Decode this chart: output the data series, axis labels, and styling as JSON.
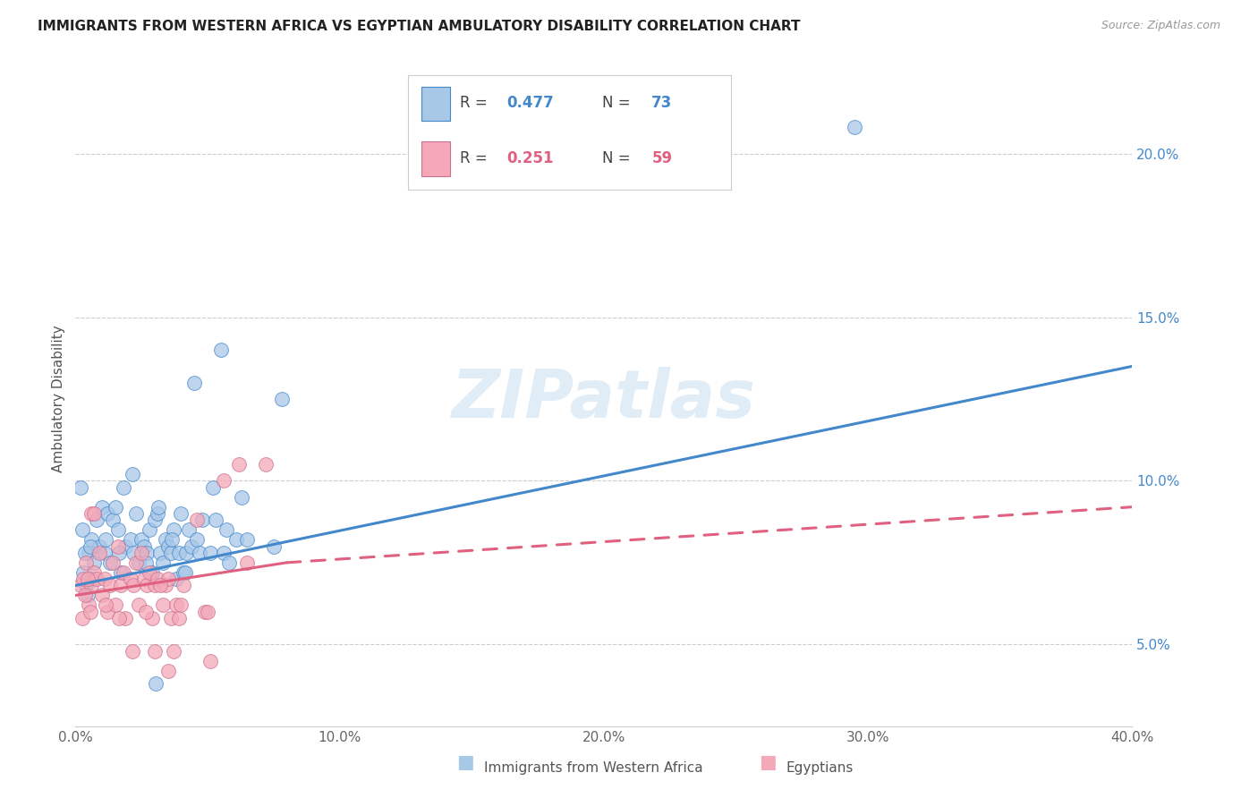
{
  "title": "IMMIGRANTS FROM WESTERN AFRICA VS EGYPTIAN AMBULATORY DISABILITY CORRELATION CHART",
  "source": "Source: ZipAtlas.com",
  "ylabel": "Ambulatory Disability",
  "right_yticks": [
    "5.0%",
    "10.0%",
    "15.0%",
    "20.0%"
  ],
  "right_ytick_vals": [
    5.0,
    10.0,
    15.0,
    20.0
  ],
  "blue_color": "#a8c8e8",
  "pink_color": "#f4a8b8",
  "blue_line_color": "#4488cc",
  "pink_line_color": "#e06080",
  "pink_line_color2": "#cc7090",
  "watermark": "ZIPatlas",
  "blue_scatter": [
    [
      0.3,
      7.2
    ],
    [
      0.4,
      6.8
    ],
    [
      0.5,
      7.8
    ],
    [
      0.6,
      8.2
    ],
    [
      0.6,
      7.0
    ],
    [
      0.7,
      7.5
    ],
    [
      0.8,
      8.8
    ],
    [
      0.9,
      8.0
    ],
    [
      1.0,
      9.2
    ],
    [
      1.1,
      7.8
    ],
    [
      1.2,
      9.0
    ],
    [
      1.3,
      7.5
    ],
    [
      1.4,
      8.8
    ],
    [
      1.5,
      9.2
    ],
    [
      1.6,
      8.5
    ],
    [
      1.7,
      7.2
    ],
    [
      1.8,
      9.8
    ],
    [
      1.9,
      8.0
    ],
    [
      2.1,
      8.2
    ],
    [
      2.2,
      7.8
    ],
    [
      2.3,
      9.0
    ],
    [
      2.4,
      7.5
    ],
    [
      2.5,
      8.2
    ],
    [
      2.6,
      8.0
    ],
    [
      2.7,
      7.8
    ],
    [
      2.8,
      8.5
    ],
    [
      2.9,
      7.2
    ],
    [
      3.0,
      8.8
    ],
    [
      3.1,
      9.0
    ],
    [
      3.2,
      7.8
    ],
    [
      3.3,
      7.5
    ],
    [
      3.4,
      8.2
    ],
    [
      3.5,
      8.0
    ],
    [
      3.6,
      7.8
    ],
    [
      3.7,
      8.5
    ],
    [
      3.8,
      7.0
    ],
    [
      3.9,
      7.8
    ],
    [
      4.0,
      9.0
    ],
    [
      4.1,
      7.2
    ],
    [
      4.2,
      7.8
    ],
    [
      4.3,
      8.5
    ],
    [
      4.4,
      8.0
    ],
    [
      4.6,
      8.2
    ],
    [
      4.7,
      7.8
    ],
    [
      4.8,
      8.8
    ],
    [
      5.1,
      7.8
    ],
    [
      5.2,
      9.8
    ],
    [
      5.3,
      8.8
    ],
    [
      5.6,
      7.8
    ],
    [
      5.7,
      8.5
    ],
    [
      5.8,
      7.5
    ],
    [
      6.1,
      8.2
    ],
    [
      6.3,
      9.5
    ],
    [
      0.2,
      9.8
    ],
    [
      0.25,
      8.5
    ],
    [
      0.35,
      7.8
    ],
    [
      0.45,
      6.5
    ],
    [
      0.55,
      8.0
    ],
    [
      1.15,
      8.2
    ],
    [
      1.65,
      7.8
    ],
    [
      2.15,
      10.2
    ],
    [
      2.65,
      7.5
    ],
    [
      3.15,
      9.2
    ],
    [
      3.65,
      8.2
    ],
    [
      4.15,
      7.2
    ],
    [
      6.5,
      8.2
    ],
    [
      7.5,
      8.0
    ],
    [
      7.8,
      12.5
    ],
    [
      5.5,
      14.0
    ],
    [
      4.5,
      13.0
    ],
    [
      3.05,
      3.8
    ],
    [
      29.5,
      20.8
    ]
  ],
  "pink_scatter": [
    [
      0.2,
      6.8
    ],
    [
      0.3,
      7.0
    ],
    [
      0.4,
      7.5
    ],
    [
      0.5,
      6.2
    ],
    [
      0.6,
      6.8
    ],
    [
      0.7,
      7.2
    ],
    [
      0.8,
      7.0
    ],
    [
      0.9,
      7.8
    ],
    [
      1.0,
      6.5
    ],
    [
      1.1,
      7.0
    ],
    [
      1.2,
      6.0
    ],
    [
      1.3,
      6.8
    ],
    [
      1.4,
      7.5
    ],
    [
      1.5,
      6.2
    ],
    [
      1.6,
      8.0
    ],
    [
      1.7,
      6.8
    ],
    [
      1.8,
      7.2
    ],
    [
      1.9,
      5.8
    ],
    [
      2.1,
      7.0
    ],
    [
      2.2,
      6.8
    ],
    [
      2.3,
      7.5
    ],
    [
      2.4,
      6.2
    ],
    [
      2.5,
      7.8
    ],
    [
      2.6,
      7.0
    ],
    [
      2.7,
      6.8
    ],
    [
      2.8,
      7.2
    ],
    [
      2.9,
      5.8
    ],
    [
      3.0,
      6.8
    ],
    [
      3.1,
      7.0
    ],
    [
      3.3,
      6.2
    ],
    [
      3.4,
      6.8
    ],
    [
      3.5,
      7.0
    ],
    [
      3.6,
      5.8
    ],
    [
      3.7,
      4.8
    ],
    [
      3.8,
      6.2
    ],
    [
      3.9,
      5.8
    ],
    [
      4.1,
      6.8
    ],
    [
      4.6,
      8.8
    ],
    [
      5.1,
      4.5
    ],
    [
      5.6,
      10.0
    ],
    [
      0.25,
      5.8
    ],
    [
      0.35,
      6.5
    ],
    [
      0.45,
      7.0
    ],
    [
      0.55,
      6.0
    ],
    [
      1.15,
      6.2
    ],
    [
      1.65,
      5.8
    ],
    [
      2.15,
      4.8
    ],
    [
      2.65,
      6.0
    ],
    [
      0.6,
      9.0
    ],
    [
      0.7,
      9.0
    ],
    [
      4.9,
      6.0
    ],
    [
      4.0,
      6.2
    ],
    [
      3.2,
      6.8
    ],
    [
      6.2,
      10.5
    ],
    [
      7.2,
      10.5
    ],
    [
      6.5,
      7.5
    ],
    [
      5.0,
      6.0
    ],
    [
      3.5,
      4.2
    ],
    [
      3.0,
      4.8
    ]
  ],
  "xlim": [
    0,
    40
  ],
  "ylim_bottom": 2.5,
  "ylim_top": 22.5,
  "blue_trend_x0": 0,
  "blue_trend_x1": 40,
  "blue_trend_y0": 6.8,
  "blue_trend_y1": 13.5,
  "pink_trend_solid_x0": 0,
  "pink_trend_solid_x1": 8.0,
  "pink_trend_solid_y0": 6.5,
  "pink_trend_solid_y1": 7.5,
  "pink_trend_dash_x0": 8.0,
  "pink_trend_dash_x1": 40,
  "pink_trend_dash_y0": 7.5,
  "pink_trend_dash_y1": 9.2
}
